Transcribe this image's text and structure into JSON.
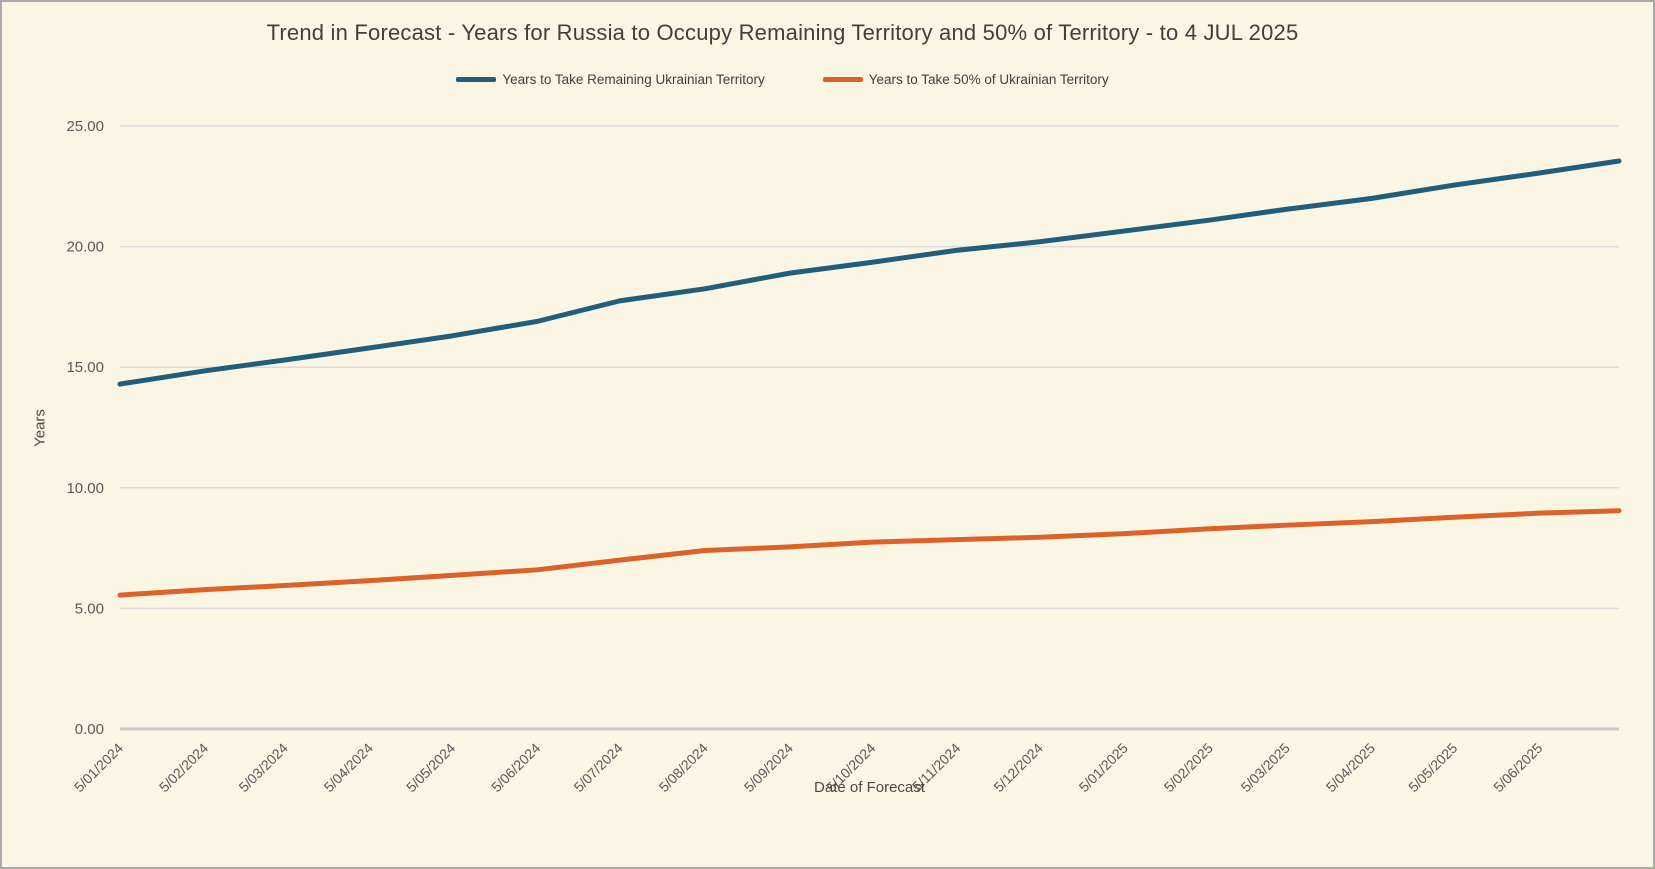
{
  "chart_data": {
    "type": "line",
    "title": "Trend in Forecast - Years for Russia to Occupy Remaining Territory and 50% of Territory - to 4 JUL 2025",
    "xlabel": "Date of Forecast",
    "ylabel": "Years",
    "ylim": [
      0,
      25
    ],
    "y_tick_labels": [
      "0.00",
      "5.00",
      "10.00",
      "15.00",
      "20.00",
      "25.00"
    ],
    "x_tick_labels": [
      "5/01/2024",
      "5/02/2024",
      "5/03/2024",
      "5/04/2024",
      "5/05/2024",
      "5/06/2024",
      "5/07/2024",
      "5/08/2024",
      "5/09/2024",
      "5/10/2024",
      "5/11/2024",
      "5/12/2024",
      "5/01/2025",
      "5/02/2025",
      "5/03/2025",
      "5/04/2025",
      "5/05/2025",
      "5/06/2025"
    ],
    "x_days": [
      0,
      31,
      60,
      91,
      121,
      152,
      182,
      213,
      244,
      274,
      305,
      335,
      366,
      397,
      425,
      456,
      486,
      517,
      546
    ],
    "x_end_note": "final data point at 4 JUL 2025",
    "grid": "horizontal-only",
    "legend_position": "top-center",
    "background_color": "#FBF5E3",
    "gridline_color": "#DCDCDC",
    "axis_line_color": "#C9C9C9",
    "tick_text_color": "#595959",
    "title_color": "#3F3F3F",
    "series": [
      {
        "name": "Years to Take Remaining Ukrainian Territory",
        "color": "#215E7C",
        "values": [
          14.3,
          14.85,
          15.3,
          15.8,
          16.3,
          16.9,
          17.75,
          18.25,
          18.9,
          19.35,
          19.85,
          20.2,
          20.65,
          21.1,
          21.55,
          22.0,
          22.55,
          23.05,
          23.55
        ]
      },
      {
        "name": "Years to Take  50% of Ukrainian Territory",
        "color": "#DC6227",
        "values": [
          5.55,
          5.78,
          5.95,
          6.15,
          6.37,
          6.6,
          7.0,
          7.4,
          7.55,
          7.75,
          7.85,
          7.95,
          8.1,
          8.3,
          8.45,
          8.6,
          8.78,
          8.95,
          9.05
        ]
      }
    ]
  }
}
